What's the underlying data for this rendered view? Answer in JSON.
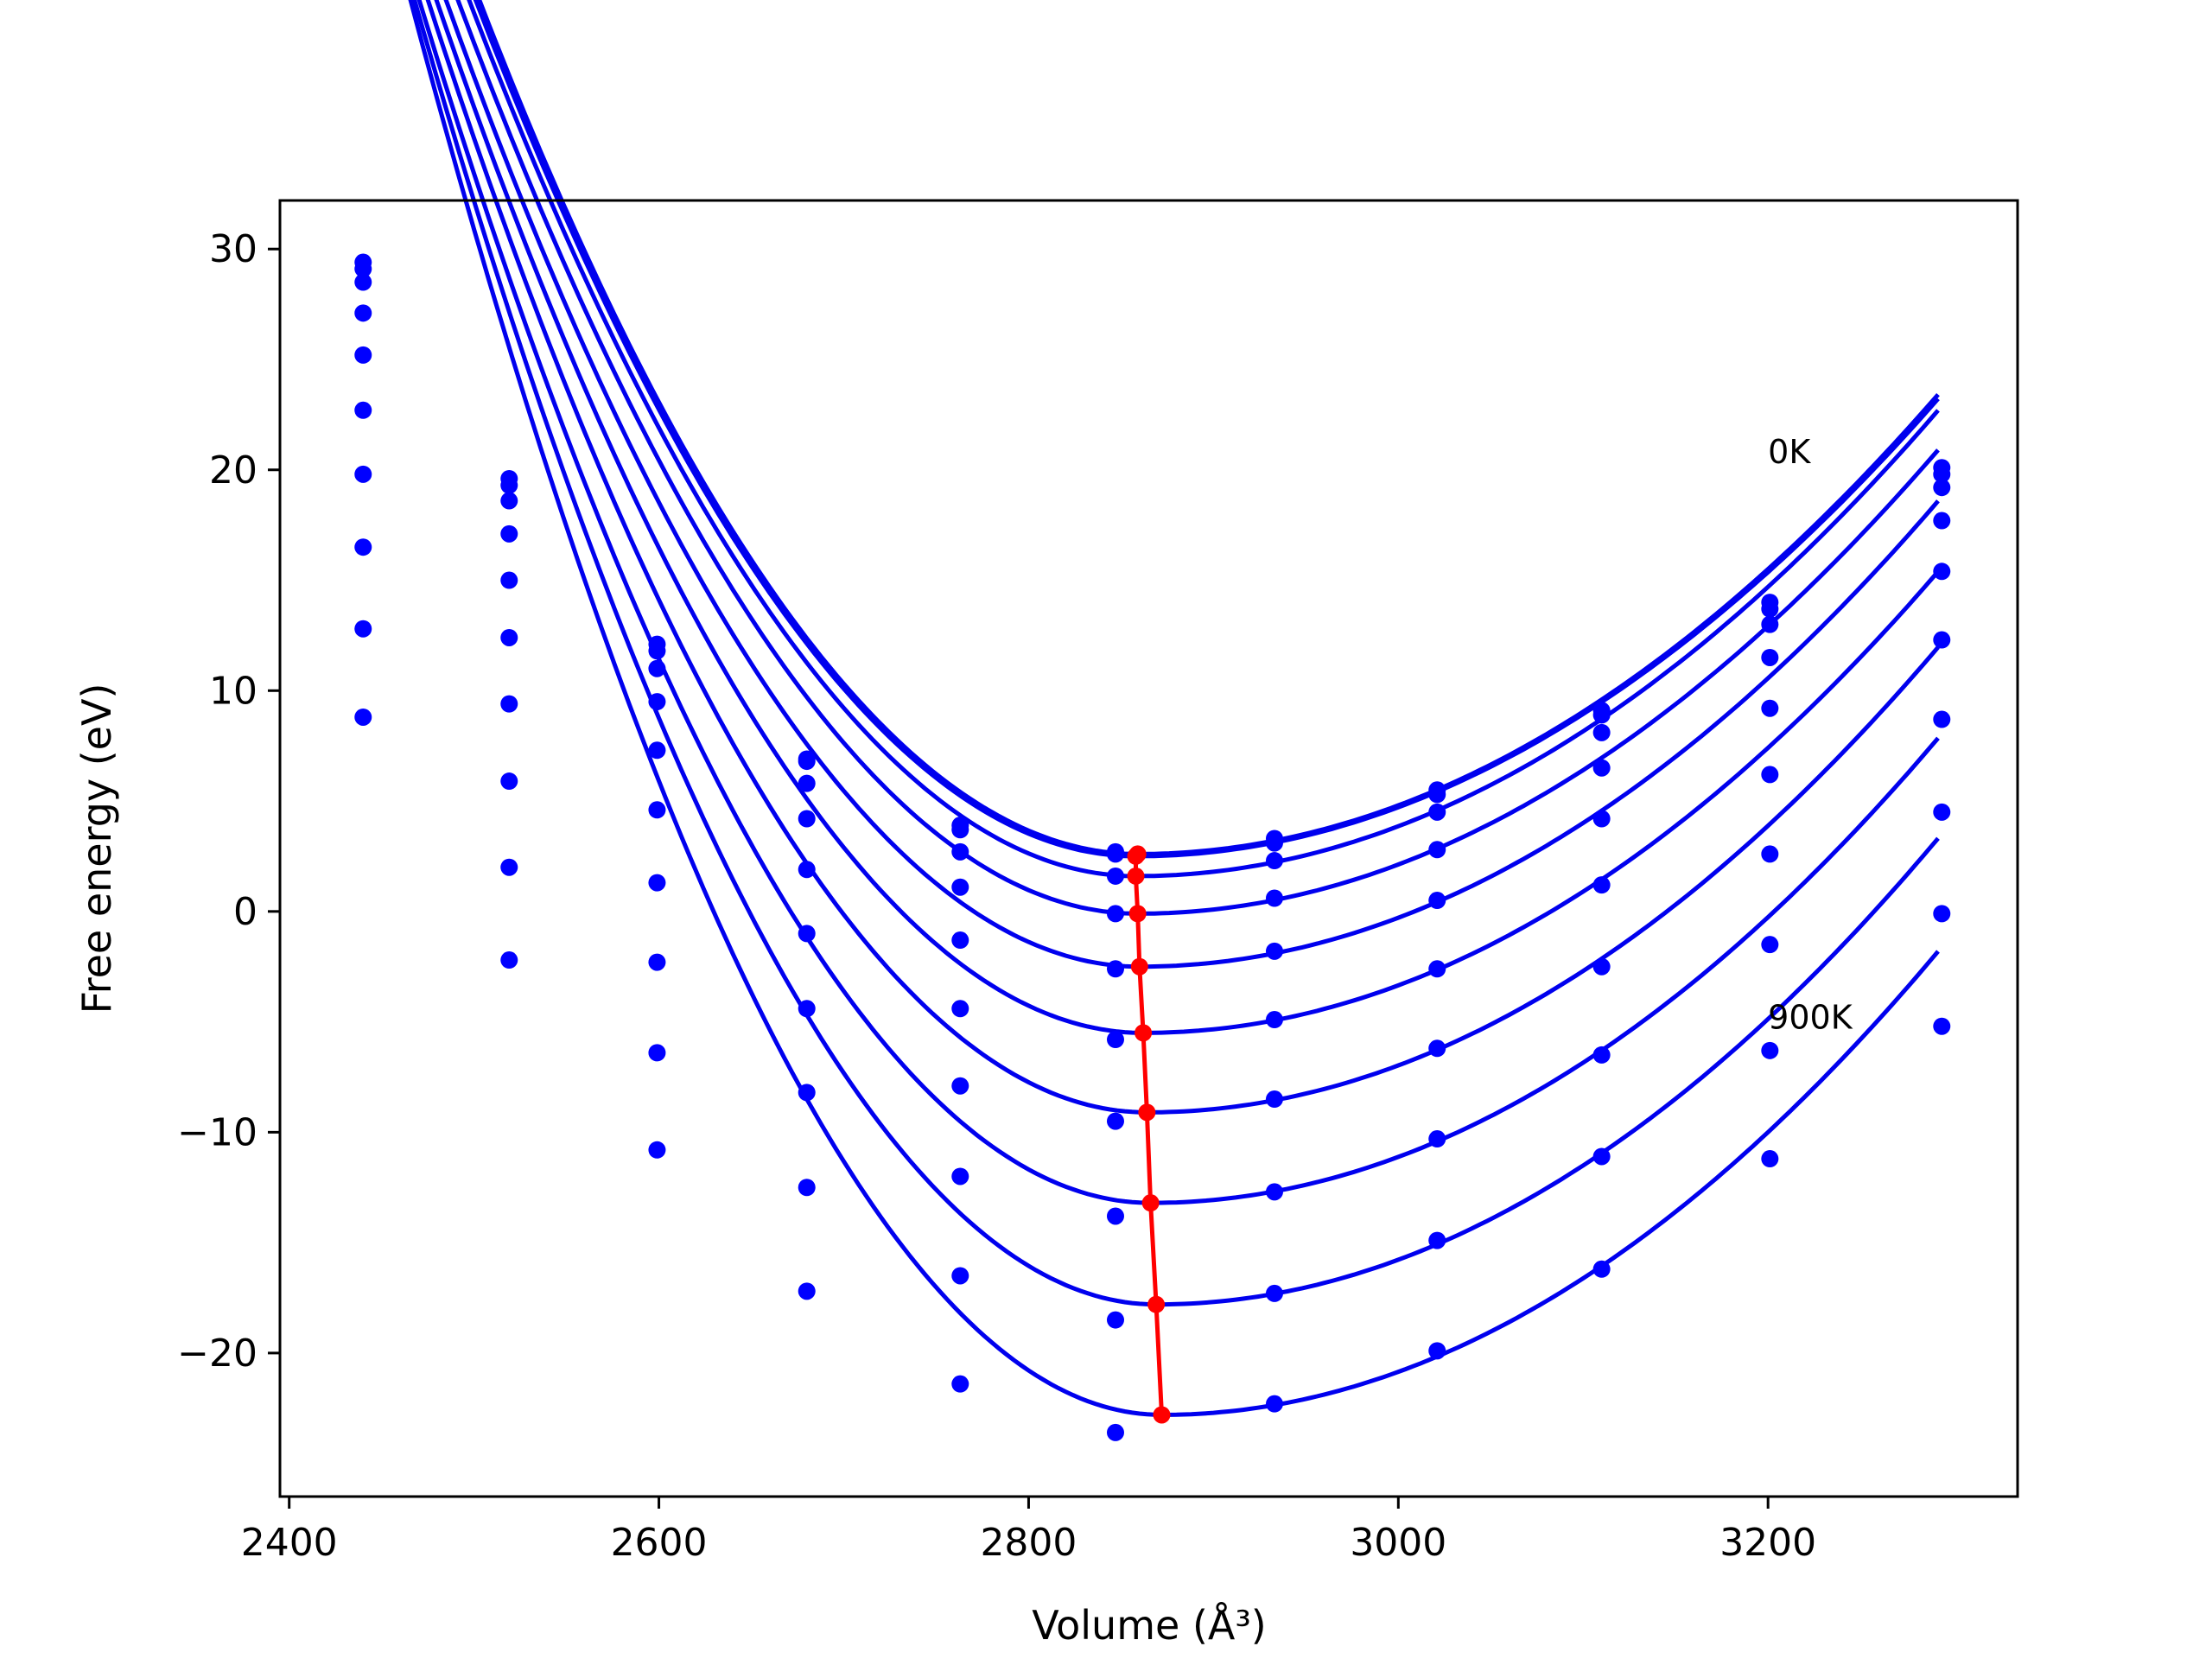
{
  "chart_data": {
    "type": "line",
    "xlabel": "Volume (Å³)",
    "ylabel": "Free energy (eV)",
    "xlim": [
      2395,
      3335
    ],
    "ylim": [
      -26.5,
      32.2
    ],
    "xticks": [
      2400,
      2600,
      2800,
      3000,
      3200
    ],
    "yticks": [
      -20,
      -10,
      0,
      10,
      20,
      30
    ],
    "grid": false,
    "colors": {
      "fit": "#0000ee",
      "points": "#0000ff",
      "minima": "#ff0000"
    },
    "annotations": [
      {
        "text": "0K",
        "x": 3200,
        "y": 20.3
      },
      {
        "text": "900K",
        "x": 3200,
        "y": -5.3
      }
    ],
    "volumes": [
      2440,
      2519,
      2599,
      2680,
      2763,
      2847,
      2933,
      3021,
      3110,
      3201,
      3294
    ],
    "series": [
      {
        "points": [
          29.4,
          19.6,
          12.1,
          6.9,
          3.9,
          2.7,
          3.3,
          5.5,
          9.1,
          14.0,
          20.1
        ],
        "fit": {
          "vmin": 2859,
          "emin": 2.6,
          "wl": 3.05,
          "wr": 1.11
        }
      },
      {
        "points": [
          29.1,
          19.3,
          11.8,
          6.8,
          3.7,
          2.6,
          3.1,
          5.3,
          8.9,
          13.7,
          19.8
        ],
        "fit": {
          "vmin": 2858,
          "emin": 2.5,
          "wl": 3.04,
          "wr": 1.1
        }
      },
      {
        "points": [
          28.5,
          18.6,
          11.0,
          5.8,
          2.7,
          1.6,
          2.3,
          4.5,
          8.1,
          13.0,
          19.2
        ],
        "fit": {
          "vmin": 2858,
          "emin": 1.6,
          "wl": 3.05,
          "wr": 1.12
        }
      },
      {
        "points": [
          27.1,
          17.1,
          9.5,
          4.2,
          1.1,
          -0.1,
          0.6,
          2.8,
          6.5,
          11.5,
          17.7
        ],
        "fit": {
          "vmin": 2859,
          "emin": -0.1,
          "wl": 3.06,
          "wr": 1.12
        }
      },
      {
        "points": [
          25.2,
          15.0,
          7.3,
          1.9,
          -1.3,
          -2.6,
          -1.8,
          0.5,
          4.2,
          9.2,
          15.4
        ],
        "fit": {
          "vmin": 2860,
          "emin": -2.5,
          "wl": 3.11,
          "wr": 1.13
        }
      },
      {
        "points": [
          22.7,
          12.4,
          4.6,
          -1.0,
          -4.4,
          -5.8,
          -4.9,
          -2.6,
          1.2,
          6.2,
          12.3
        ],
        "fit": {
          "vmin": 2862,
          "emin": -5.5,
          "wl": 3.2,
          "wr": 1.13
        }
      },
      {
        "points": [
          19.8,
          9.4,
          1.3,
          -4.4,
          -7.9,
          -9.5,
          -8.5,
          -6.2,
          -2.5,
          2.6,
          8.7
        ],
        "fit": {
          "vmin": 2864,
          "emin": -9.1,
          "wl": 3.33,
          "wr": 1.15
        }
      },
      {
        "points": [
          16.5,
          5.9,
          -2.3,
          -8.2,
          -12.0,
          -13.8,
          -12.7,
          -10.3,
          -6.5,
          -1.5,
          4.5
        ],
        "fit": {
          "vmin": 2866,
          "emin": -13.2,
          "wl": 3.48,
          "wr": 1.16
        }
      },
      {
        "points": [
          12.8,
          2.0,
          -6.4,
          -12.5,
          -16.5,
          -18.5,
          -17.3,
          -14.9,
          -11.1,
          -6.3,
          -0.1
        ],
        "fit": {
          "vmin": 2869,
          "emin": -17.8,
          "wl": 3.67,
          "wr": 1.18
        }
      },
      {
        "points": [
          8.8,
          -2.2,
          -10.8,
          -17.2,
          -21.4,
          -23.6,
          -22.3,
          -19.9,
          -16.2,
          -11.2,
          -5.2
        ],
        "fit": {
          "vmin": 2872,
          "emin": -22.8,
          "wl": 3.88,
          "wr": 1.19
        }
      }
    ],
    "minima": [
      {
        "x": 2859,
        "y": 2.6
      },
      {
        "x": 2858,
        "y": 2.5
      },
      {
        "x": 2858,
        "y": 1.6
      },
      {
        "x": 2859,
        "y": -0.1
      },
      {
        "x": 2860,
        "y": -2.5
      },
      {
        "x": 2862,
        "y": -5.5
      },
      {
        "x": 2864,
        "y": -9.1
      },
      {
        "x": 2866,
        "y": -13.2
      },
      {
        "x": 2869,
        "y": -17.8
      },
      {
        "x": 2872,
        "y": -22.8
      }
    ]
  }
}
